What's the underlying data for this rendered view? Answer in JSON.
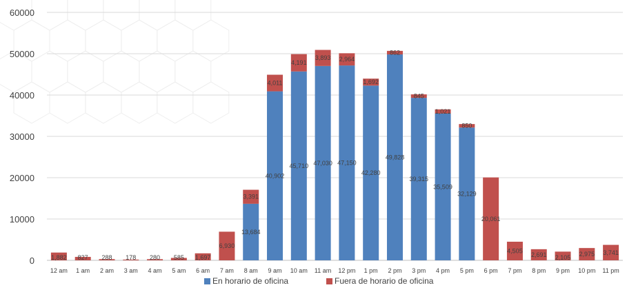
{
  "colors": {
    "blue": "#4f81bd",
    "red": "#c0504d",
    "grid": "#d9d9d9",
    "text": "#404040"
  },
  "legend": {
    "items": [
      {
        "name": "En horario de oficina",
        "color": "#4f81bd"
      },
      {
        "name": "Fuera de horario de oficina",
        "color": "#c0504d"
      }
    ]
  },
  "chart_data": {
    "type": "bar",
    "stacked": true,
    "categories": [
      "12 am",
      "1 am",
      "2 am",
      "3 am",
      "4 am",
      "5 am",
      "6 am",
      "7 am",
      "8 am",
      "9 am",
      "10 am",
      "11 am",
      "12 pm",
      "1 pm",
      "2 pm",
      "3 pm",
      "4 pm",
      "5 pm",
      "6 pm",
      "7 pm",
      "8 pm",
      "9 pm",
      "10 pm",
      "11 pm"
    ],
    "series": [
      {
        "name": "En horario de oficina",
        "color": "#4f81bd",
        "values": [
          0,
          0,
          0,
          0,
          0,
          0,
          0,
          0,
          13684,
          40902,
          45710,
          47030,
          47150,
          42280,
          49828,
          39315,
          35509,
          32129,
          0,
          0,
          0,
          0,
          0,
          0
        ],
        "labels": [
          "",
          "",
          "",
          "",
          "",
          "",
          "",
          "",
          "13,684",
          "40,902",
          "45,710",
          "47,030",
          "47,150",
          "42,280",
          "49,828",
          "39,315",
          "35,509",
          "32,129",
          "",
          "",
          "",
          "",
          "",
          ""
        ]
      },
      {
        "name": "Fuera de horario de oficina",
        "color": "#c0504d",
        "values": [
          1882,
          827,
          288,
          178,
          280,
          585,
          1697,
          6930,
          3391,
          4011,
          4191,
          3893,
          2964,
          1692,
          862,
          845,
          1021,
          850,
          20061,
          4505,
          2691,
          2105,
          2975,
          3741
        ],
        "labels": [
          "1,882",
          "827",
          "288",
          "178",
          "280",
          "585",
          "1,697",
          "6,930",
          "3,391",
          "4,011",
          "4,191",
          "3,893",
          "2,964",
          "1,692",
          "862",
          "845",
          "1,021",
          "850",
          "20,061",
          "4,505",
          "2,691",
          "2,105",
          "2,975",
          "3,741"
        ]
      }
    ],
    "ylim": [
      0,
      60000
    ],
    "yticks": [
      0,
      10000,
      20000,
      30000,
      40000,
      50000,
      60000
    ],
    "ytick_labels": [
      "0",
      "10000",
      "20000",
      "30000",
      "40000",
      "50000",
      "60000"
    ],
    "grid": true,
    "legend_position": "bottom"
  }
}
